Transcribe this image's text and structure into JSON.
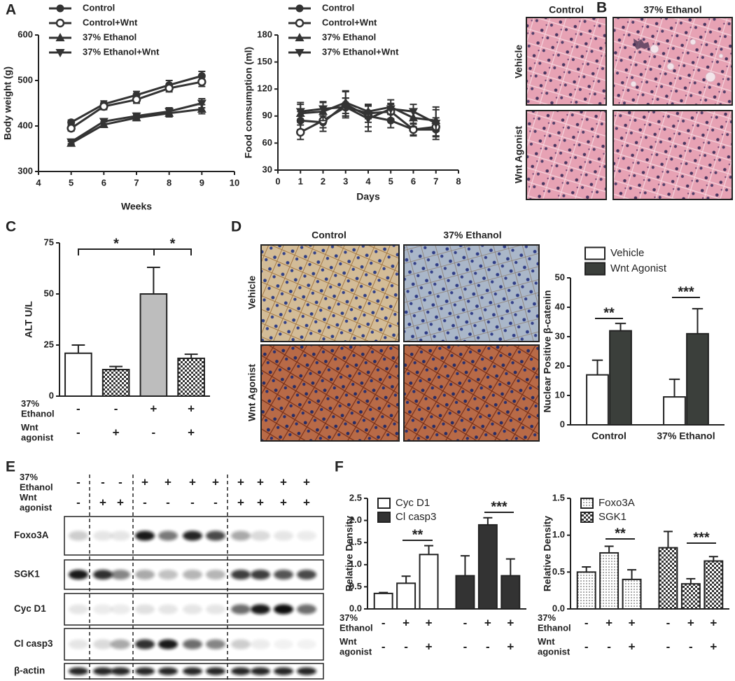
{
  "panel_labels": [
    "A",
    "B",
    "C",
    "D",
    "E",
    "F"
  ],
  "chart_data": [
    {
      "type": "line",
      "x": [
        5,
        6,
        7,
        8,
        9
      ],
      "xlim": [
        4,
        10
      ],
      "xticks": [
        4,
        5,
        6,
        7,
        8,
        9,
        10
      ],
      "ylim": [
        300,
        600
      ],
      "yticks": [
        300,
        400,
        500,
        600
      ],
      "xlabel": "Weeks",
      "ylabel": "Body weight (g)",
      "legend": "upper left",
      "series": [
        {
          "name": "Control",
          "color": "#333333",
          "marker": "circle",
          "values": [
            408,
            448,
            468,
            490,
            510
          ],
          "errors": [
            5,
            7,
            8,
            10,
            10
          ]
        },
        {
          "name": "Control+Wnt",
          "color": "#333333",
          "marker": "circle-open",
          "values": [
            395,
            443,
            458,
            483,
            497
          ],
          "errors": [
            6,
            7,
            8,
            8,
            10
          ]
        },
        {
          "name": "37% Ethanol",
          "color": "#333333",
          "marker": "triangle",
          "values": [
            362,
            403,
            418,
            428,
            437
          ],
          "errors": [
            4,
            6,
            6,
            8,
            10
          ]
        },
        {
          "name": "37% Ethanol+Wnt",
          "color": "#333333",
          "marker": "triangle-down",
          "values": [
            365,
            410,
            422,
            432,
            450
          ],
          "errors": [
            4,
            6,
            6,
            8,
            10
          ]
        }
      ]
    },
    {
      "type": "line",
      "x": [
        1,
        2,
        3,
        4,
        5,
        6,
        7
      ],
      "xlim": [
        0,
        8
      ],
      "xticks": [
        0,
        1,
        2,
        3,
        4,
        5,
        6,
        7,
        8
      ],
      "ylim": [
        30,
        180
      ],
      "yticks": [
        30,
        60,
        90,
        120,
        150,
        180
      ],
      "xlabel": "Days",
      "ylabel": "Food comsumption (ml)",
      "legend": "upper left",
      "series": [
        {
          "name": "Control",
          "color": "#333333",
          "marker": "circle",
          "values": [
            85,
            83,
            103,
            90,
            85,
            75,
            75
          ],
          "errors": [
            10,
            10,
            15,
            12,
            8,
            7,
            8
          ]
        },
        {
          "name": "Control+Wnt",
          "color": "#333333",
          "marker": "circle-open",
          "values": [
            72,
            85,
            100,
            93,
            95,
            75,
            78
          ],
          "errors": [
            8,
            8,
            10,
            10,
            8,
            6,
            10
          ]
        },
        {
          "name": "37% Ethanol",
          "color": "#333333",
          "marker": "triangle",
          "values": [
            93,
            95,
            105,
            95,
            100,
            88,
            85
          ],
          "errors": [
            10,
            10,
            12,
            8,
            8,
            10,
            12
          ]
        },
        {
          "name": "37% Ethanol+Wnt",
          "color": "#333333",
          "marker": "triangle-down",
          "values": [
            95,
            98,
            100,
            87,
            98,
            95,
            82
          ],
          "errors": [
            10,
            8,
            10,
            14,
            6,
            8,
            18
          ]
        }
      ]
    },
    {
      "type": "bar",
      "values": [
        21,
        13,
        50,
        18.5
      ],
      "errors": [
        4,
        1.5,
        13,
        2
      ],
      "fills": [
        "#ffffff",
        "check",
        "#bdbdbd",
        "check"
      ],
      "ylim": [
        0,
        75
      ],
      "yticks": [
        0,
        25,
        50,
        75
      ],
      "ylabel": "ALT U/L",
      "annotations": [
        "*",
        "*"
      ],
      "rows": [
        {
          "label": "37% Ethanol",
          "signs": [
            "-",
            "-",
            "+",
            "+"
          ]
        },
        {
          "label": "Wnt agonist",
          "signs": [
            "-",
            "+",
            "-",
            "+"
          ]
        }
      ]
    },
    {
      "type": "bar",
      "categories": [
        "Control",
        "37% Ethanol"
      ],
      "series": [
        {
          "name": "Vehicle",
          "color": "#ffffff",
          "values": [
            17,
            9.5
          ],
          "errors": [
            5,
            6
          ]
        },
        {
          "name": "Wnt Agonist",
          "color": "#3b3f3b",
          "values": [
            32,
            31
          ],
          "errors": [
            2.5,
            8.5
          ]
        }
      ],
      "ylim": [
        0,
        50
      ],
      "yticks": [
        0,
        10,
        20,
        30,
        40,
        50
      ],
      "ylabel": "Nuclear Positive β-catenin",
      "legend": "upper left",
      "annotations": [
        "**",
        "***"
      ]
    },
    {
      "type": "bar",
      "series": [
        {
          "name": "Cyc D1",
          "color": "#ffffff",
          "values": [
            0.35,
            0.58,
            1.23
          ],
          "errors": [
            0.02,
            0.16,
            0.2
          ]
        },
        {
          "name": "Cl casp3",
          "color": "#333333",
          "values": [
            0.75,
            1.9,
            0.75
          ],
          "errors": [
            0.45,
            0.16,
            0.38
          ]
        }
      ],
      "ylim": [
        0,
        2.5
      ],
      "yticks": [
        {
          "value": 0,
          "label": "0.0"
        },
        0.5,
        {
          "value": 1,
          "label": "1.0"
        },
        1.5,
        {
          "value": 2,
          "label": "2.0"
        },
        2.5
      ],
      "ylabel": "Relative Density",
      "legend": "upper left",
      "annotations": [
        "**",
        "***"
      ],
      "rows": [
        {
          "label": "37% Ethanol",
          "signs": [
            "-",
            "+",
            "+",
            "-",
            "+",
            "+"
          ]
        },
        {
          "label": "Wnt agonist",
          "signs": [
            "-",
            "-",
            "+",
            "-",
            "-",
            "+"
          ]
        }
      ]
    },
    {
      "type": "bar",
      "series": [
        {
          "name": "Foxo3A",
          "color": "dots",
          "values": [
            0.5,
            0.76,
            0.4
          ],
          "errors": [
            0.07,
            0.09,
            0.13
          ]
        },
        {
          "name": "SGK1",
          "color": "check",
          "values": [
            0.83,
            0.34,
            0.65
          ],
          "errors": [
            0.22,
            0.07,
            0.06
          ]
        }
      ],
      "ylim": [
        0,
        1.5
      ],
      "yticks": [
        {
          "value": 0,
          "label": "0.0"
        },
        0.5,
        {
          "value": 1,
          "label": "1.0"
        },
        1.5
      ],
      "ylabel": "Relative Density",
      "legend": "upper left",
      "annotations": [
        "**",
        "***"
      ],
      "rows": [
        {
          "label": "37% Ethanol",
          "signs": [
            "-",
            "+",
            "+",
            "-",
            "+",
            "+"
          ]
        },
        {
          "label": "Wnt agonist",
          "signs": [
            "-",
            "-",
            "+",
            "-",
            "-",
            "+"
          ]
        }
      ]
    }
  ],
  "histology_b": {
    "columns": [
      "Control",
      "37% Ethanol"
    ],
    "rows": [
      "Vehicle",
      "Wnt Agonist"
    ]
  },
  "histology_d": {
    "columns": [
      "Control",
      "37% Ethanol"
    ],
    "rows": [
      "Vehicle",
      "Wnt  Agonist"
    ]
  },
  "blot": {
    "rows": [
      {
        "label": "37% Ethanol",
        "signs": [
          "-",
          "-",
          "-",
          "+",
          "+",
          "+",
          "+",
          "+",
          "+",
          "+",
          "+"
        ]
      },
      {
        "label": "Wnt agonist",
        "signs": [
          "-",
          "+",
          "+",
          "-",
          "-",
          "-",
          "-",
          "+",
          "+",
          "+",
          "+"
        ]
      }
    ],
    "proteins": [
      "Foxo3A",
      "SGK1",
      "Cyc D1",
      "Cl casp3",
      "β-actin"
    ]
  }
}
